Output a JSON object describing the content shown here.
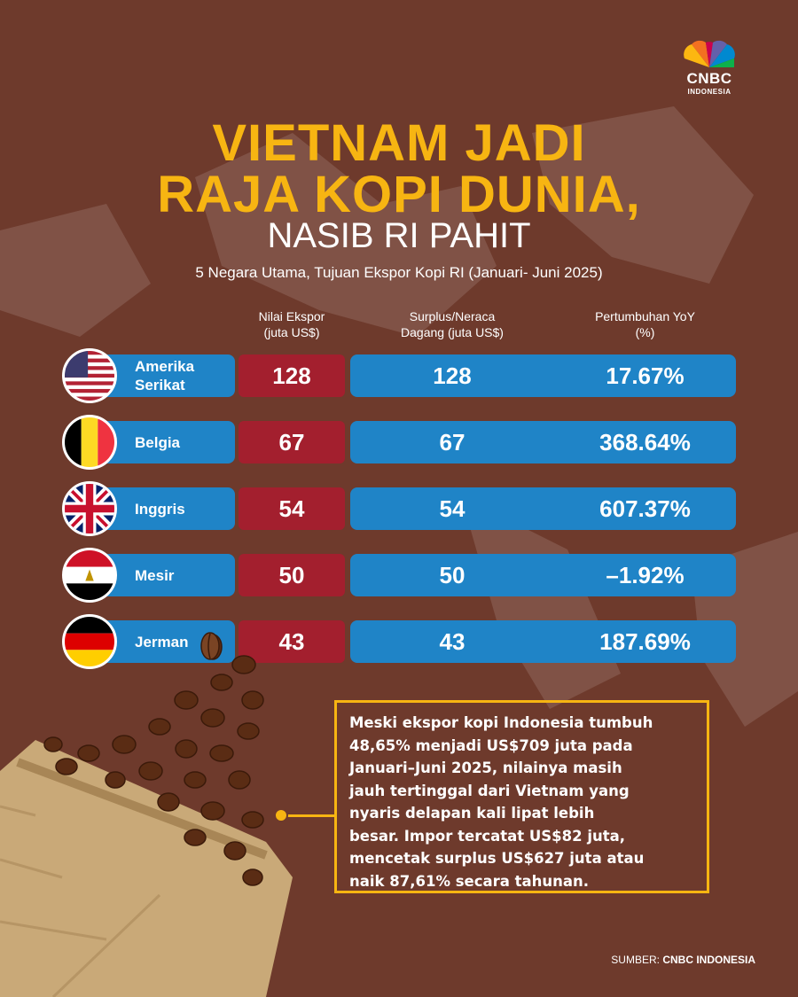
{
  "colors": {
    "background": "#6e3a2c",
    "accent_yellow": "#f7b512",
    "row_blue": "#1f84c7",
    "export_red": "#a31f2e"
  },
  "logo": {
    "word": "CNBC",
    "sub": "INDONESIA"
  },
  "title": {
    "line1": "VIETNAM JADI",
    "line2": "RAJA KOPI DUNIA,",
    "line3": "NASIB RI PAHIT"
  },
  "subtitle": "5 Negara Utama, Tujuan Ekspor Kopi RI (Januari- Juni 2025)",
  "columns": {
    "export_l1": "Nilai Ekspor",
    "export_l2": "(juta US$)",
    "surplus_l1": "Surplus/Neraca",
    "surplus_l2": "Dagang (juta US$)",
    "growth_l1": "Pertumbuhan YoY",
    "growth_l2": "(%)"
  },
  "rows": [
    {
      "country_l1": "Amerika",
      "country_l2": "Serikat",
      "flag_icon": "usa-flag-icon",
      "export": "128",
      "surplus": "128",
      "growth": "17.67%"
    },
    {
      "country_l1": "Belgia",
      "country_l2": "",
      "flag_icon": "belgium-flag-icon",
      "export": "67",
      "surplus": "67",
      "growth": "368.64%"
    },
    {
      "country_l1": "Inggris",
      "country_l2": "",
      "flag_icon": "uk-flag-icon",
      "export": "54",
      "surplus": "54",
      "growth": "607.37%"
    },
    {
      "country_l1": "Mesir",
      "country_l2": "",
      "flag_icon": "egypt-flag-icon",
      "export": "50",
      "surplus": "50",
      "growth": "–1.92%"
    },
    {
      "country_l1": "Jerman",
      "country_l2": "",
      "flag_icon": "germany-flag-icon",
      "export": "43",
      "surplus": "43",
      "growth": "187.69%"
    }
  ],
  "note": {
    "l1": "Meski ekspor kopi Indonesia tumbuh",
    "l2": "48,65% menjadi US$709 juta pada",
    "l3": "Januari–Juni 2025, nilainya masih",
    "l4": "jauh tertinggal dari Vietnam yang",
    "l5": "nyaris delapan kali lipat lebih",
    "l6": "besar. Impor tercatat US$82 juta,",
    "l7": "mencetak surplus US$627 juta atau",
    "l8": "naik 87,61% secara tahunan."
  },
  "source": {
    "label": "SUMBER:",
    "name": "CNBC INDONESIA"
  }
}
